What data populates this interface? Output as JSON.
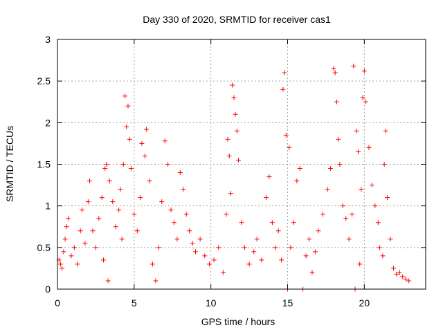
{
  "chart_data": {
    "type": "scatter",
    "title": "Day 330 of 2020, SRMTID for receiver cas1",
    "xlabel": "GPS time / hours",
    "ylabel": "SRMTID / TECUs",
    "xlim": [
      0,
      24
    ],
    "ylim": [
      0,
      3
    ],
    "xticks": [
      0,
      5,
      10,
      15,
      20
    ],
    "yticks": [
      0,
      0.5,
      1,
      1.5,
      2,
      2.5,
      3
    ],
    "xtick_labels": [
      "0",
      "5",
      "10",
      "15",
      "20"
    ],
    "ytick_labels": [
      "0",
      "0.5",
      "1",
      "1.5",
      "2",
      "2.5",
      "3"
    ],
    "grid": true,
    "marker": "plus",
    "color": "#ff0000",
    "series": [
      {
        "name": "SRMTID",
        "points": [
          [
            0.1,
            0.35
          ],
          [
            0.2,
            0.3
          ],
          [
            0.3,
            0.25
          ],
          [
            0.4,
            0.45
          ],
          [
            0.5,
            0.6
          ],
          [
            0.6,
            0.75
          ],
          [
            0.7,
            0.85
          ],
          [
            0.9,
            0.4
          ],
          [
            1.1,
            0.5
          ],
          [
            1.3,
            0.3
          ],
          [
            1.5,
            0.7
          ],
          [
            1.6,
            0.95
          ],
          [
            1.8,
            0.55
          ],
          [
            2.0,
            1.05
          ],
          [
            2.1,
            1.3
          ],
          [
            2.3,
            0.7
          ],
          [
            2.5,
            0.5
          ],
          [
            2.7,
            0.85
          ],
          [
            2.9,
            1.1
          ],
          [
            3.0,
            0.35
          ],
          [
            3.1,
            1.45
          ],
          [
            3.2,
            1.5
          ],
          [
            3.3,
            0.1
          ],
          [
            3.4,
            1.3
          ],
          [
            3.6,
            1.05
          ],
          [
            3.8,
            0.75
          ],
          [
            4.0,
            0.95
          ],
          [
            4.1,
            1.2
          ],
          [
            4.2,
            0.6
          ],
          [
            4.3,
            1.5
          ],
          [
            4.4,
            2.32
          ],
          [
            4.5,
            1.95
          ],
          [
            4.6,
            2.2
          ],
          [
            4.7,
            1.8
          ],
          [
            4.8,
            1.45
          ],
          [
            5.0,
            0.9
          ],
          [
            5.2,
            0.7
          ],
          [
            5.4,
            1.1
          ],
          [
            5.5,
            1.75
          ],
          [
            5.7,
            1.6
          ],
          [
            5.8,
            1.92
          ],
          [
            6.0,
            1.3
          ],
          [
            6.2,
            0.3
          ],
          [
            6.4,
            0.1
          ],
          [
            6.6,
            0.5
          ],
          [
            6.8,
            1.05
          ],
          [
            7.0,
            1.78
          ],
          [
            7.2,
            1.5
          ],
          [
            7.4,
            0.95
          ],
          [
            7.6,
            0.8
          ],
          [
            7.8,
            0.6
          ],
          [
            8.0,
            1.4
          ],
          [
            8.2,
            1.2
          ],
          [
            8.4,
            0.9
          ],
          [
            8.6,
            0.7
          ],
          [
            8.8,
            0.55
          ],
          [
            9.0,
            0.45
          ],
          [
            9.3,
            0.6
          ],
          [
            9.6,
            0.4
          ],
          [
            9.9,
            0.3
          ],
          [
            10.2,
            0.35
          ],
          [
            10.5,
            0.5
          ],
          [
            10.8,
            0.2
          ],
          [
            11.0,
            0.9
          ],
          [
            11.1,
            1.8
          ],
          [
            11.2,
            1.6
          ],
          [
            11.3,
            1.15
          ],
          [
            11.4,
            2.45
          ],
          [
            11.5,
            2.3
          ],
          [
            11.6,
            2.1
          ],
          [
            11.7,
            1.9
          ],
          [
            11.8,
            1.55
          ],
          [
            12.0,
            0.8
          ],
          [
            12.2,
            0.5
          ],
          [
            12.5,
            0.3
          ],
          [
            12.8,
            0.45
          ],
          [
            13.0,
            0.6
          ],
          [
            13.3,
            0.35
          ],
          [
            13.6,
            1.1
          ],
          [
            13.8,
            1.35
          ],
          [
            14.0,
            0.8
          ],
          [
            14.2,
            0.5
          ],
          [
            14.4,
            0.7
          ],
          [
            14.6,
            0.35
          ],
          [
            14.7,
            2.4
          ],
          [
            14.8,
            2.6
          ],
          [
            14.9,
            1.85
          ],
          [
            15.0,
            0.0
          ],
          [
            15.1,
            1.7
          ],
          [
            15.2,
            0.5
          ],
          [
            15.4,
            0.8
          ],
          [
            15.6,
            1.3
          ],
          [
            15.8,
            1.45
          ],
          [
            16.0,
            0.0
          ],
          [
            16.2,
            0.4
          ],
          [
            16.4,
            0.6
          ],
          [
            16.6,
            0.2
          ],
          [
            16.8,
            0.45
          ],
          [
            17.0,
            0.7
          ],
          [
            17.3,
            0.9
          ],
          [
            17.6,
            1.2
          ],
          [
            17.8,
            1.45
          ],
          [
            18.0,
            2.65
          ],
          [
            18.1,
            2.6
          ],
          [
            18.2,
            2.25
          ],
          [
            18.3,
            1.8
          ],
          [
            18.4,
            1.5
          ],
          [
            18.6,
            1.0
          ],
          [
            18.8,
            0.85
          ],
          [
            19.0,
            0.6
          ],
          [
            19.2,
            0.9
          ],
          [
            19.3,
            2.68
          ],
          [
            19.4,
            0.0
          ],
          [
            19.5,
            1.9
          ],
          [
            19.6,
            1.65
          ],
          [
            19.7,
            0.3
          ],
          [
            19.8,
            1.2
          ],
          [
            19.9,
            2.3
          ],
          [
            20.0,
            2.62
          ],
          [
            20.1,
            2.25
          ],
          [
            20.3,
            1.7
          ],
          [
            20.5,
            1.25
          ],
          [
            20.7,
            1.0
          ],
          [
            20.9,
            0.8
          ],
          [
            21.0,
            0.5
          ],
          [
            21.2,
            0.4
          ],
          [
            21.3,
            1.5
          ],
          [
            21.4,
            1.9
          ],
          [
            21.5,
            1.1
          ],
          [
            21.7,
            0.6
          ],
          [
            21.9,
            0.25
          ],
          [
            22.1,
            0.18
          ],
          [
            22.3,
            0.2
          ],
          [
            22.5,
            0.15
          ],
          [
            22.7,
            0.12
          ],
          [
            22.9,
            0.1
          ]
        ]
      }
    ]
  }
}
